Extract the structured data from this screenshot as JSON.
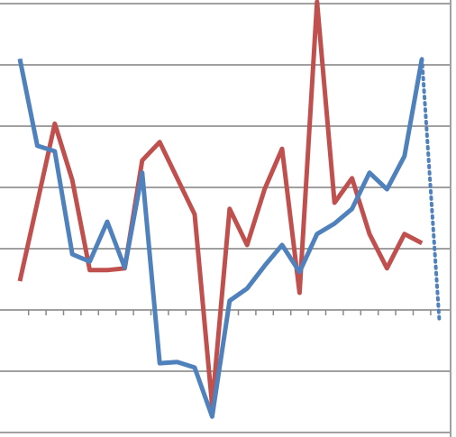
{
  "chart_data": {
    "type": "line",
    "categories": [
      null,
      null,
      null,
      null,
      null,
      null,
      null,
      null,
      null,
      null,
      null,
      null,
      null,
      null,
      null,
      null,
      null,
      null,
      null,
      null,
      null,
      null,
      null,
      null,
      null
    ],
    "series": [
      {
        "color": "#c0504d",
        "values": [
          0.47,
          1.75,
          3.04,
          2.12,
          0.65,
          0.65,
          0.68,
          2.44,
          2.74,
          2.15,
          1.56,
          -1.56,
          1.65,
          1.06,
          1.97,
          2.63,
          0.28,
          5.03,
          1.75,
          2.15,
          1.24,
          0.68,
          1.24,
          1.09,
          null
        ]
      },
      {
        "color": "#4f81bd",
        "dotted_last_segment": true,
        "values": [
          4.1,
          2.68,
          2.59,
          0.91,
          0.79,
          1.44,
          0.69,
          2.24,
          -0.87,
          -0.85,
          -0.94,
          -1.74,
          0.15,
          0.35,
          0.72,
          1.06,
          0.62,
          1.24,
          1.41,
          1.65,
          2.24,
          1.97,
          2.51,
          4.1,
          -0.19
        ]
      }
    ],
    "ylim": [
      -2,
      5
    ],
    "yticks": [
      -2,
      -1,
      0,
      1,
      2,
      3,
      4,
      5
    ],
    "grid": true
  }
}
